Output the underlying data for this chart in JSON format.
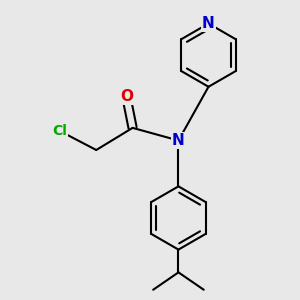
{
  "bg_color": "#e8e8e8",
  "bond_color": "#000000",
  "bond_width": 1.5,
  "atom_colors": {
    "N_pyridine": "#0000cc",
    "N_amide": "#0000cc",
    "O": "#dd0000",
    "Cl": "#00aa00"
  },
  "font_size_hetero": 11,
  "font_size_Cl": 10
}
